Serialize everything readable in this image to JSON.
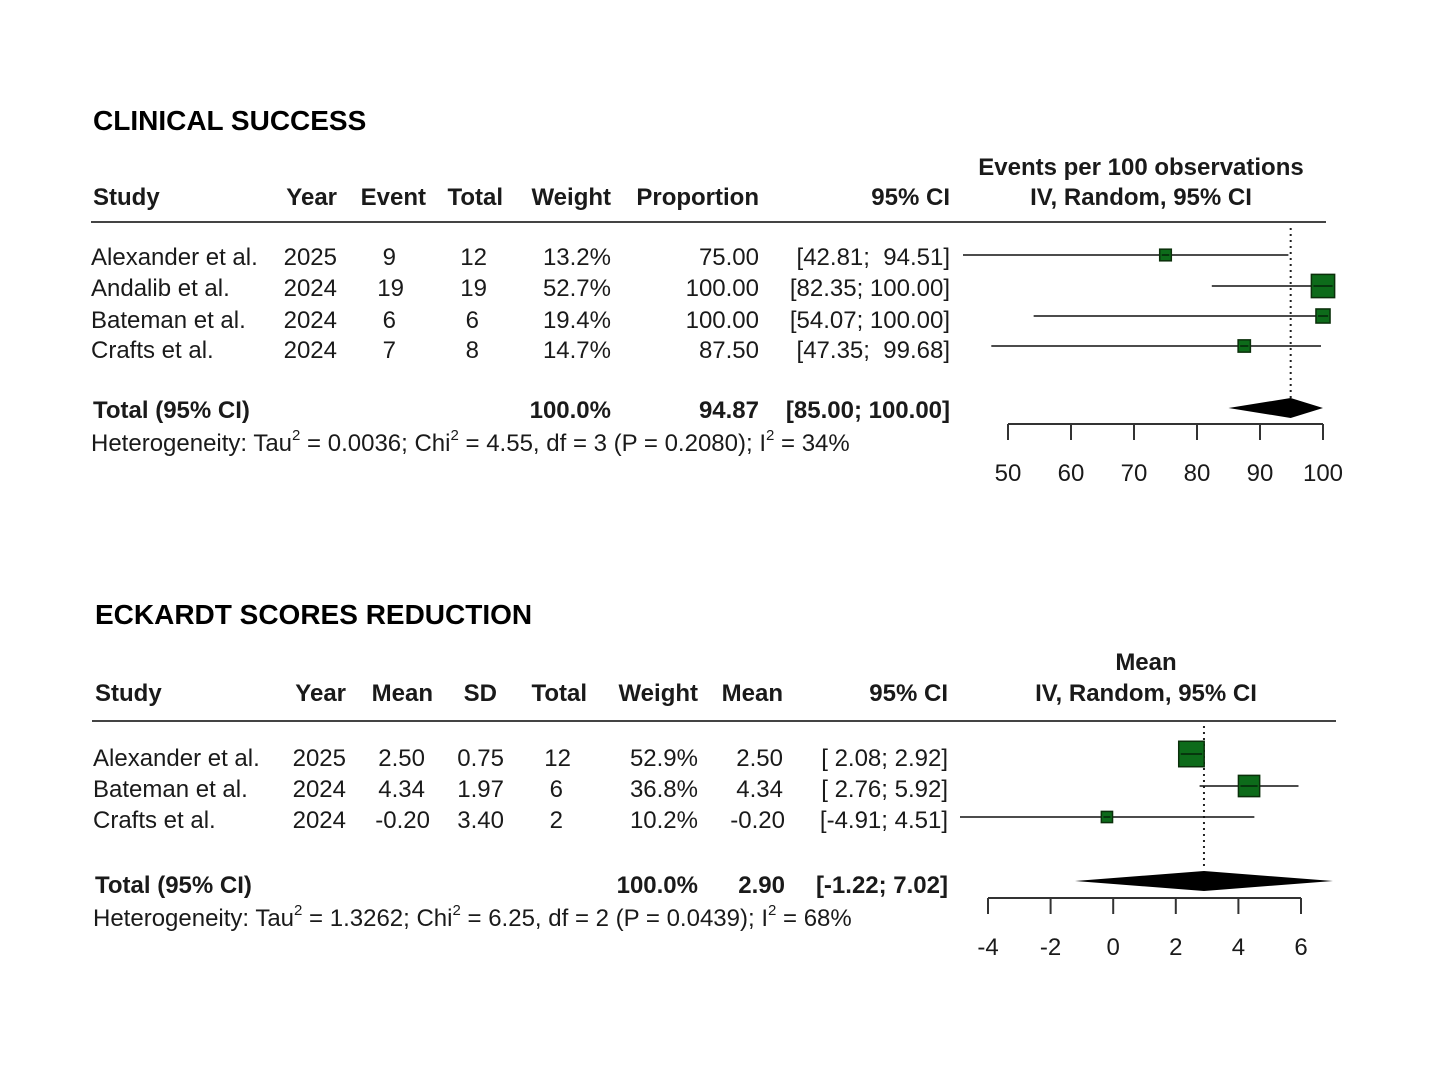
{
  "chart_data": [
    {
      "type": "forest",
      "title": "CLINICAL SUCCESS",
      "header_top_right": "Events per 100 observations",
      "header_right": "IV, Random, 95% CI",
      "columns": [
        "Study",
        "Year",
        "Event",
        "Total",
        "Weight",
        "Proportion",
        "95% CI"
      ],
      "rows": [
        {
          "study": "Alexander et al.",
          "year": "2025",
          "event": "9",
          "total": "12",
          "weight": "13.2%",
          "estimate": "75.00",
          "ci": "[42.81;  94.51]",
          "est": 75.0,
          "lo": 42.81,
          "hi": 94.51,
          "w": 13.2
        },
        {
          "study": "Andalib et al.",
          "year": "2024",
          "event": "19",
          "total": "19",
          "weight": "52.7%",
          "estimate": "100.00",
          "ci": "[82.35; 100.00]",
          "est": 100.0,
          "lo": 82.35,
          "hi": 100.0,
          "w": 52.7
        },
        {
          "study": "Bateman et al.",
          "year": "2024",
          "event": "6",
          "total": "6",
          "weight": "19.4%",
          "estimate": "100.00",
          "ci": "[54.07; 100.00]",
          "est": 100.0,
          "lo": 54.07,
          "hi": 100.0,
          "w": 19.4
        },
        {
          "study": "Crafts et al.",
          "year": "2024",
          "event": "7",
          "total": "8",
          "weight": "14.7%",
          "estimate": "87.50",
          "ci": "[47.35;  99.68]",
          "est": 87.5,
          "lo": 47.35,
          "hi": 99.68,
          "w": 14.7
        }
      ],
      "total": {
        "label": "Total (95% CI)",
        "weight": "100.0%",
        "estimate": "94.87",
        "ci": "[85.00; 100.00]",
        "est": 94.87,
        "lo": 85.0,
        "hi": 100.0
      },
      "heterogeneity": {
        "prefix": "Heterogeneity: Tau",
        "tau2": "0.0036",
        "chi2": "4.55",
        "df": "3",
        "p": "0.2080",
        "i2": "34%"
      },
      "xlim": [
        50,
        100
      ],
      "ticks": [
        50,
        60,
        70,
        80,
        90,
        100
      ],
      "arrow_left": true
    },
    {
      "type": "forest",
      "title": "ECKARDT SCORES REDUCTION",
      "header_top_right": "Mean",
      "header_right": "IV, Random, 95% CI",
      "columns": [
        "Study",
        "Year",
        "Mean",
        "SD",
        "Total",
        "Weight",
        "Mean",
        "95% CI"
      ],
      "rows": [
        {
          "study": "Alexander et al.",
          "year": "2025",
          "mean": "2.50",
          "sd": "0.75",
          "total": "12",
          "weight": "52.9%",
          "estimate": "2.50",
          "ci": "[ 2.08; 2.92]",
          "est": 2.5,
          "lo": 2.08,
          "hi": 2.92,
          "w": 52.9
        },
        {
          "study": "Bateman et al.",
          "year": "2024",
          "mean": "4.34",
          "sd": "1.97",
          "total": "6",
          "weight": "36.8%",
          "estimate": "4.34",
          "ci": "[ 2.76; 5.92]",
          "est": 4.34,
          "lo": 2.76,
          "hi": 5.92,
          "w": 36.8
        },
        {
          "study": "Crafts et al.",
          "year": "2024",
          "mean": "-0.20",
          "sd": "3.40",
          "total": "2",
          "weight": "10.2%",
          "estimate": "-0.20",
          "ci": "[-4.91; 4.51]",
          "est": -0.2,
          "lo": -4.91,
          "hi": 4.51,
          "w": 10.2
        }
      ],
      "total": {
        "label": "Total (95% CI)",
        "weight": "100.0%",
        "estimate": "2.90",
        "ci": "[-1.22; 7.02]",
        "est": 2.9,
        "lo": -1.22,
        "hi": 7.02
      },
      "heterogeneity": {
        "prefix": "Heterogeneity: Tau",
        "tau2": "1.3262",
        "chi2": "6.25",
        "df": "2",
        "p": "0.0439",
        "i2": "68%"
      },
      "xlim": [
        -4,
        6
      ],
      "ticks": [
        -4,
        -2,
        0,
        2,
        4,
        6
      ],
      "arrow_left": true
    }
  ],
  "colors": {
    "box_fill": "#0d6b1a",
    "box_stroke": "#0a2f0a",
    "line": "#111111",
    "diamond": "#000000"
  }
}
